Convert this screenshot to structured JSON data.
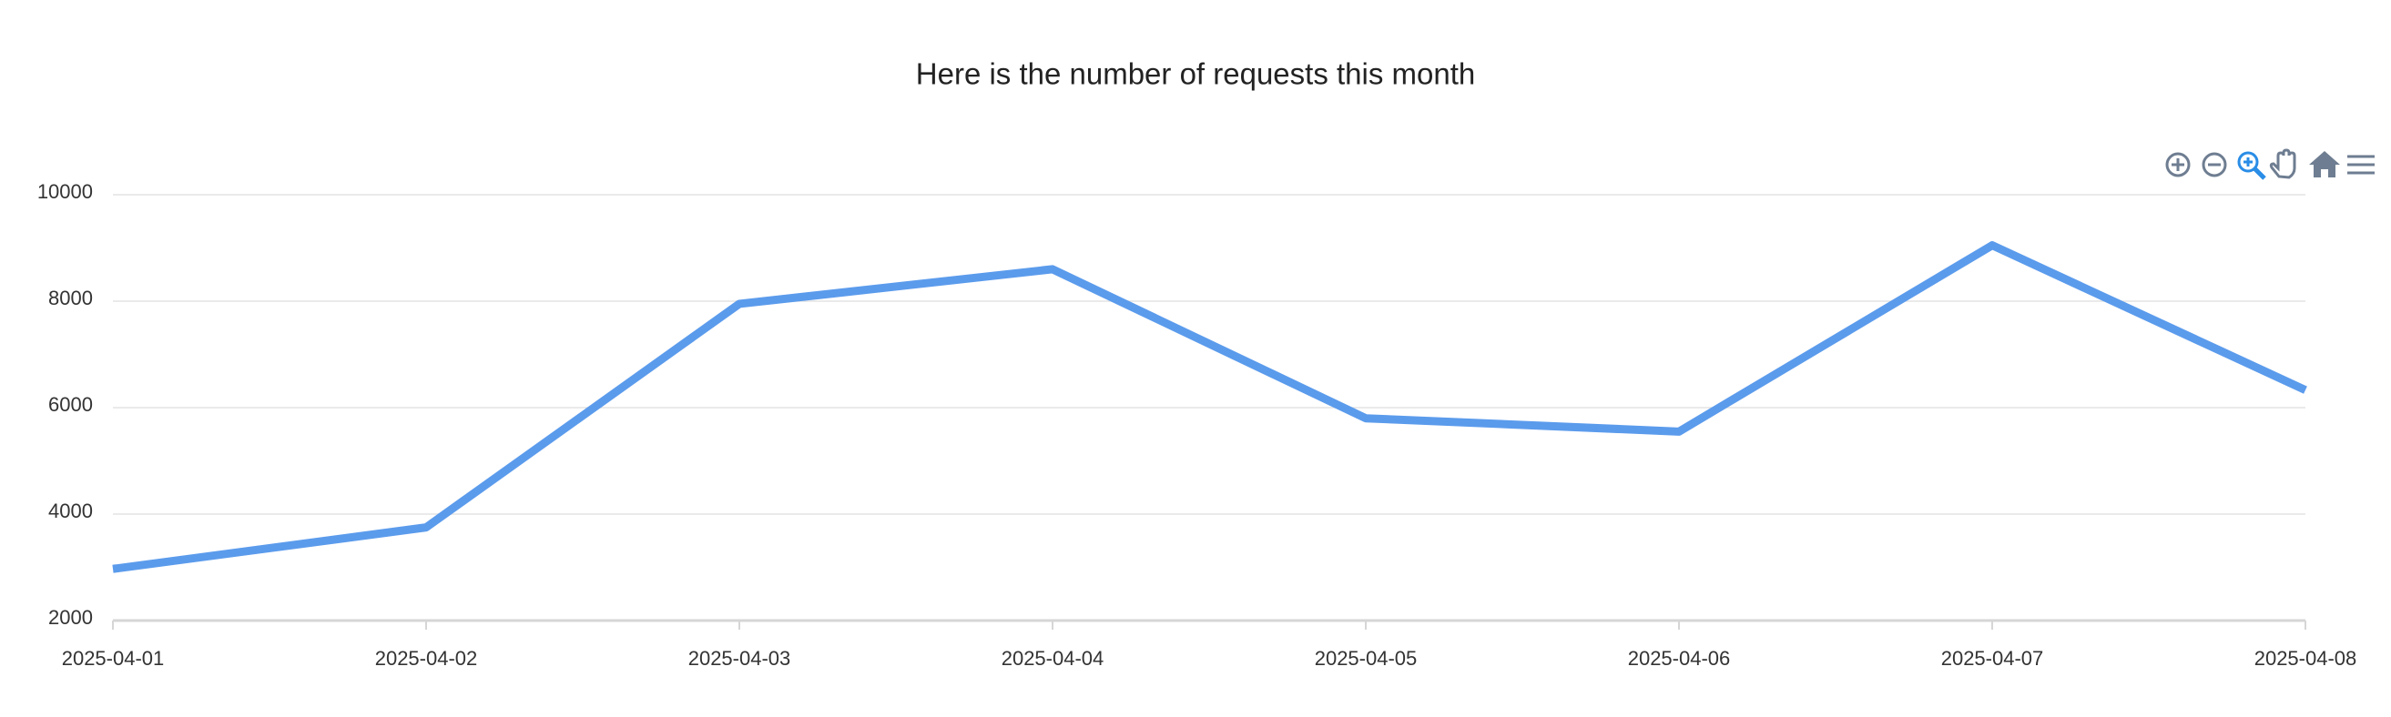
{
  "chart_data": {
    "type": "line",
    "title": "Here is the number of requests this month",
    "x": [
      "2025-04-01",
      "2025-04-02",
      "2025-04-03",
      "2025-04-04",
      "2025-04-05",
      "2025-04-06",
      "2025-04-07",
      "2025-04-08"
    ],
    "series": [
      {
        "color": "#5b9bec",
        "values": [
          2970,
          3750,
          7950,
          8600,
          5800,
          5550,
          9050,
          6330
        ]
      }
    ],
    "ylim": [
      2000,
      10000
    ],
    "yticks": [
      2000,
      4000,
      6000,
      8000,
      10000
    ],
    "grid": true
  }
}
